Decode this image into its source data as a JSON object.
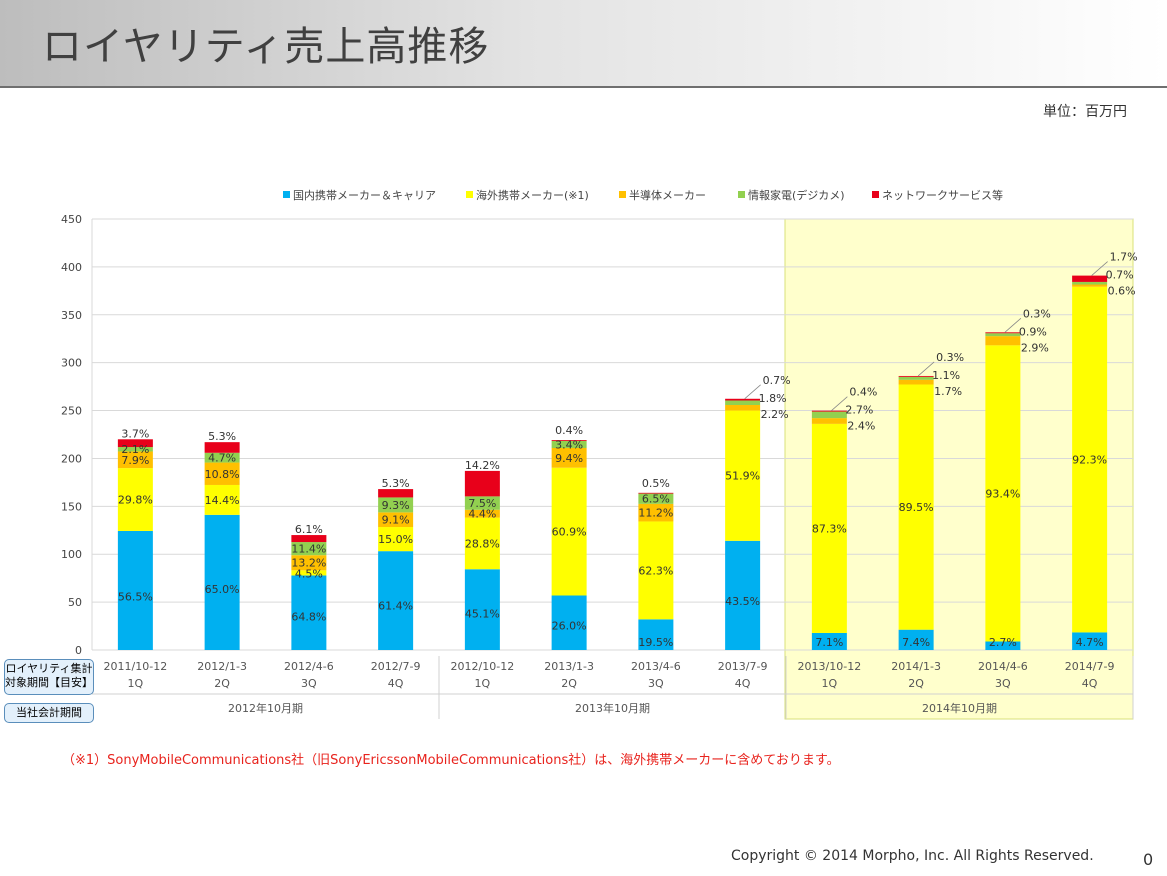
{
  "page": {
    "title": "ロイヤリティ売上高推移",
    "unit": "単位：百万円",
    "footnote": "（※1）SonyMobileCommunications社（旧SonyEricssonMobileCommunications社）は、海外携帯メーカーに含めております。",
    "copyright": "Copyright © 2014 Morpho, Inc. All Rights Reserved.",
    "page_number": "0",
    "side_box_1": [
      "ロイヤリティ集計",
      "対象期間【目安】"
    ],
    "side_box_2": "当社会計期間"
  },
  "chart_data": {
    "type": "bar",
    "stacked": true,
    "ylim": [
      0,
      450
    ],
    "yticks": [
      0,
      50,
      100,
      150,
      200,
      250,
      300,
      350,
      400,
      450
    ],
    "grid": true,
    "legend_position": "top",
    "colors": [
      "#00b0f0",
      "#ffff00",
      "#ffc000",
      "#92d050",
      "#e8001a"
    ],
    "highlight_color": "#ffffcc",
    "highlight_from_index": 8,
    "categories": [
      [
        "2011/10-12",
        "1Q"
      ],
      [
        "2012/1-3",
        "2Q"
      ],
      [
        "2012/4-6",
        "3Q"
      ],
      [
        "2012/7-9",
        "4Q"
      ],
      [
        "2012/10-12",
        "1Q"
      ],
      [
        "2013/1-3",
        "2Q"
      ],
      [
        "2013/4-6",
        "3Q"
      ],
      [
        "2013/7-9",
        "4Q"
      ],
      [
        "2013/10-12",
        "1Q"
      ],
      [
        "2014/1-3",
        "2Q"
      ],
      [
        "2014/4-6",
        "3Q"
      ],
      [
        "2014/7-9",
        "4Q"
      ]
    ],
    "fiscal_periods": [
      {
        "label": "2012年10月期",
        "start": 0,
        "end": 3
      },
      {
        "label": "2013年10月期",
        "start": 4,
        "end": 7
      },
      {
        "label": "2014年10月期",
        "start": 8,
        "end": 11
      }
    ],
    "totals": [
      220,
      217,
      120,
      168,
      187,
      219,
      164,
      262,
      250,
      286,
      331,
      391
    ],
    "series": [
      {
        "name": "国内携帯メーカー＆キャリア",
        "values": [
          124.3,
          141.1,
          77.8,
          103.2,
          84.3,
          56.9,
          32.0,
          114.0,
          17.8,
          21.2,
          8.9,
          18.4
        ],
        "labels": [
          "56.5%",
          "65.0%",
          "64.8%",
          "61.4%",
          "45.1%",
          "26.0%",
          "19.5%",
          "43.5%",
          "7.1%",
          "7.4%",
          "2.7%",
          "4.7%"
        ]
      },
      {
        "name": "海外携帯メーカー(※1)",
        "values": [
          65.6,
          31.2,
          5.4,
          25.2,
          53.9,
          133.4,
          102.2,
          136.0,
          218.3,
          256.0,
          309.2,
          360.9
        ],
        "labels": [
          "29.8%",
          "14.4%",
          "4.5%",
          "15.0%",
          "28.8%",
          "60.9%",
          "62.3%",
          "51.9%",
          "87.3%",
          "89.5%",
          "93.4%",
          "92.3%"
        ]
      },
      {
        "name": "半導体メーカー",
        "values": [
          17.4,
          23.4,
          15.8,
          15.3,
          8.2,
          20.6,
          18.4,
          5.8,
          6.0,
          4.9,
          9.6,
          2.3
        ],
        "labels": [
          "7.9%",
          "10.8%",
          "13.2%",
          "9.1%",
          "4.4%",
          "9.4%",
          "11.2%",
          "2.2%",
          "2.4%",
          "1.7%",
          "2.9%",
          "0.6%"
        ]
      },
      {
        "name": "情報家電(デジカメ)",
        "values": [
          4.6,
          10.2,
          13.7,
          15.6,
          14.0,
          7.4,
          10.7,
          4.7,
          6.8,
          3.1,
          3.0,
          2.7
        ],
        "labels": [
          "2.1%",
          "4.7%",
          "11.4%",
          "9.3%",
          "7.5%",
          "3.4%",
          "6.5%",
          "1.8%",
          "2.7%",
          "1.1%",
          "0.9%",
          "0.7%"
        ]
      },
      {
        "name": "ネットワークサービス等",
        "values": [
          8.1,
          11.1,
          7.3,
          8.7,
          26.6,
          0.9,
          0.8,
          1.8,
          1.0,
          0.9,
          1.0,
          6.6
        ],
        "labels": [
          "3.7%",
          "5.3%",
          "6.1%",
          "5.3%",
          "14.2%",
          "0.4%",
          "0.5%",
          "0.7%",
          "0.4%",
          "0.3%",
          "0.3%",
          "1.7%"
        ]
      }
    ]
  }
}
